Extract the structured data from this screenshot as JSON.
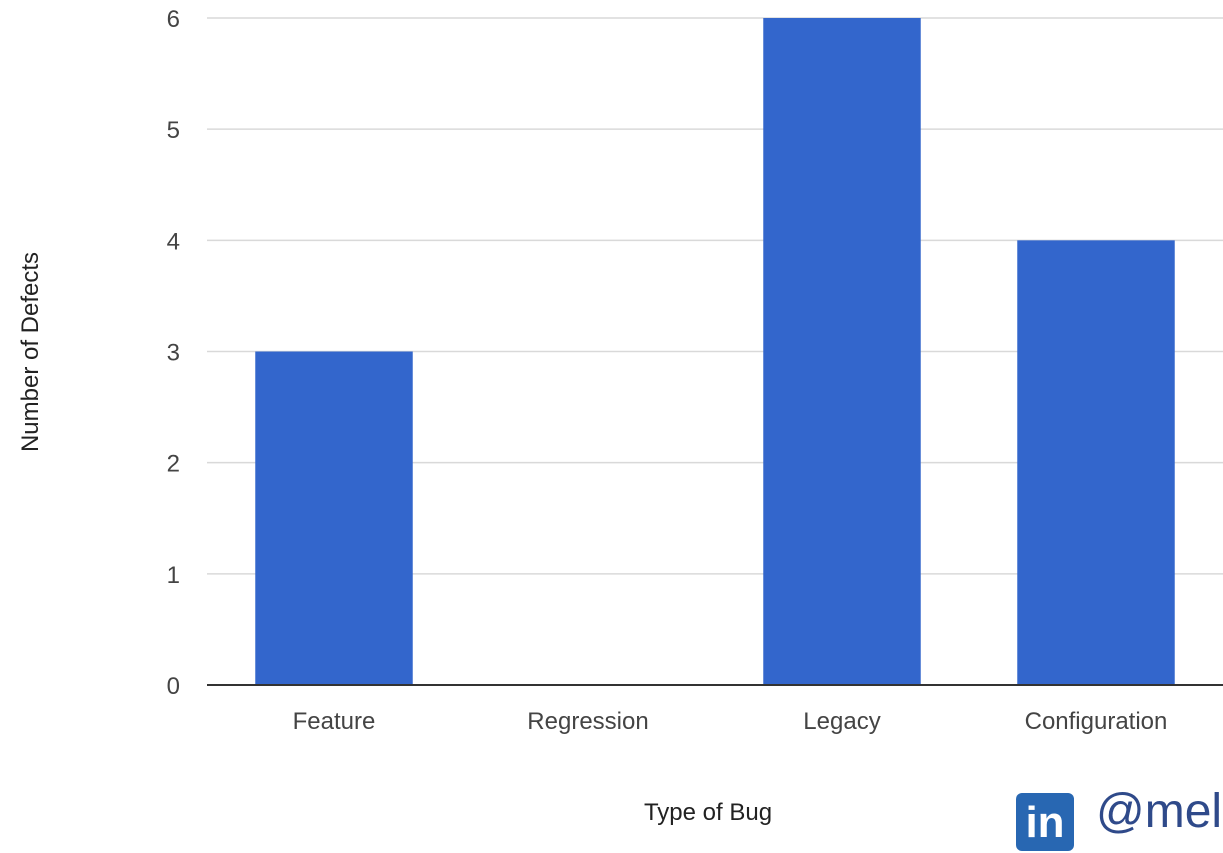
{
  "chart_data": {
    "type": "bar",
    "categories": [
      "Feature",
      "Regression",
      "Legacy",
      "Configuration"
    ],
    "values": [
      3,
      0,
      6,
      4
    ],
    "xlabel": "Type of Bug",
    "ylabel": "Number of Defects",
    "ylim": [
      0,
      6
    ],
    "yticks": [
      "0",
      "1",
      "2",
      "3",
      "4",
      "5",
      "6"
    ],
    "grid": true,
    "bar_color": "#3366cc"
  },
  "watermark": {
    "badge": "in",
    "handle": "@mel"
  },
  "colors": {
    "grid": "#d9d9d9",
    "baseline": "#333333",
    "linkedin": "#2867b2"
  }
}
